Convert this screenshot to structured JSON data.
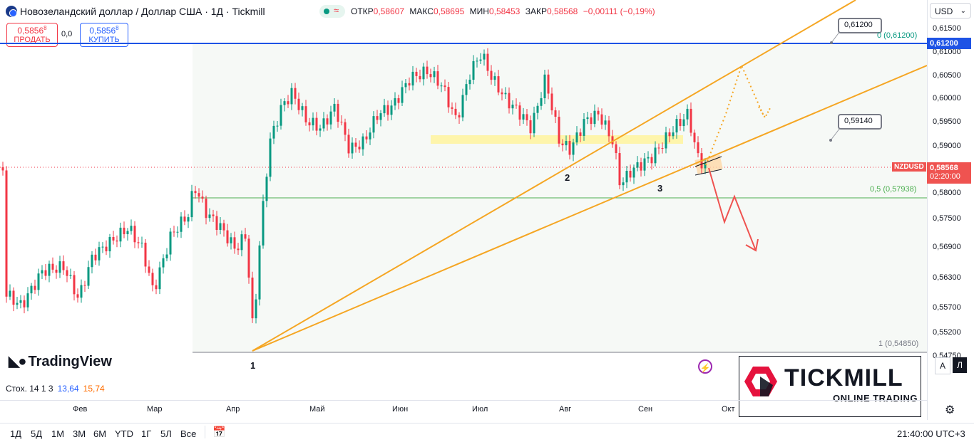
{
  "header": {
    "title": "Новозеландский доллар / Доллар США · 1Д · Tickmill",
    "ohlc": [
      {
        "label": "ОТКР",
        "value": "0,58607"
      },
      {
        "label": "МАКС",
        "value": "0,58695"
      },
      {
        "label": "МИН",
        "value": "0,58453"
      },
      {
        "label": "ЗАКР",
        "value": "0,58568"
      },
      {
        "label": "",
        "value": "−0,00111 (−0,19%)"
      }
    ],
    "wave_glyph": "≈"
  },
  "trade": {
    "sell_price": "0,5856",
    "sell_sup": "8",
    "sell_label": "ПРОДАТЬ",
    "spread": "0,0",
    "buy_price": "0,5856",
    "buy_sup": "8",
    "buy_label": "КУПИТЬ"
  },
  "axis": {
    "currency": "USD",
    "ticks": [
      "0,61500",
      "0,61000",
      "0,60500",
      "0,60000",
      "0,59500",
      "0,59000",
      "0,58000",
      "0,57500",
      "0,56900",
      "0,56300",
      "0,55700",
      "0,55200",
      "0,54750"
    ],
    "top_label": "0,61200",
    "symbol": "NZDUSD",
    "current_price": "0,58568",
    "countdown": "02:20:00"
  },
  "annotations": {
    "callout_high": "0,61200",
    "callout_mid": "0,59140",
    "fib_0": "0 (0,61200)",
    "fib_05": "0,5 (0,57938)",
    "fib_1": "1 (0,54850)",
    "point_1": "1",
    "point_2": "2",
    "point_3": "3"
  },
  "colors": {
    "up": "#089981",
    "down": "#f23645",
    "trendline": "#f5a623",
    "blue_level": "#1e53e5",
    "fib_green": "#4caf50",
    "highlight": "#fff59d"
  },
  "indicator": {
    "label": "Стох. 14 1 3",
    "k": "13,64",
    "d": "15,74"
  },
  "months": [
    "Фев",
    "Мар",
    "Апр",
    "Май",
    "Июн",
    "Июл",
    "Авг",
    "Сен",
    "Окт"
  ],
  "ranges": [
    "1Д",
    "5Д",
    "1М",
    "3М",
    "6М",
    "YTD",
    "1Г",
    "5Л",
    "Все"
  ],
  "clock": "21:40:00 UTC+3",
  "branding": {
    "tradingview": "TradingView",
    "tickmill": "TICKMILL",
    "tickmill_sub": "ONLINE TRADING"
  },
  "scale_toggles": {
    "auto": "A",
    "log": "Л"
  }
}
